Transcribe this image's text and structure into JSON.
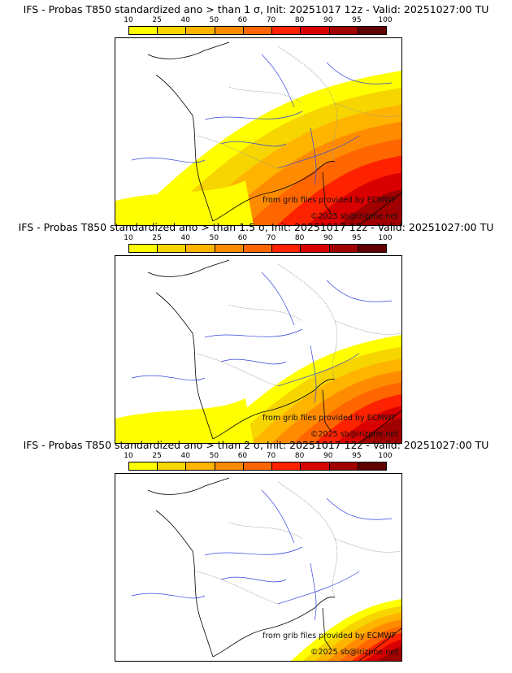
{
  "colorbar": {
    "ticks": [
      "10",
      "25",
      "40",
      "50",
      "60",
      "70",
      "80",
      "90",
      "95",
      "100"
    ],
    "colors": [
      "#ffff00",
      "#f6d500",
      "#ffb400",
      "#ff8c00",
      "#ff6600",
      "#ff2200",
      "#d80000",
      "#a00000",
      "#600000"
    ]
  },
  "panels": [
    {
      "title": "IFS - Probas T850  standardized ano > than 1 σ, Init: 20251017 12z - Valid: 20251027:00 TU",
      "credit1": "from grib files provided by ECMWF",
      "credit2": "©2025 sb@irizpne.net",
      "extent": 1.0
    },
    {
      "title": "IFS - Probas T850  standardized ano > than 1.5 σ, Init: 20251017 12z - Valid: 20251027:00 TU",
      "credit1": "from grib files provided by ECMWF",
      "credit2": "©2025 sb@irizpne.net",
      "extent": 0.7
    },
    {
      "title": "IFS - Probas T850  standardized ano > than 2 σ, Init: 20251017 12z - Valid: 20251027:00 TU",
      "credit1": "from grib files provided by ECMWF",
      "credit2": "©2025 sb@irizpne.net",
      "extent": 0.4
    }
  ]
}
